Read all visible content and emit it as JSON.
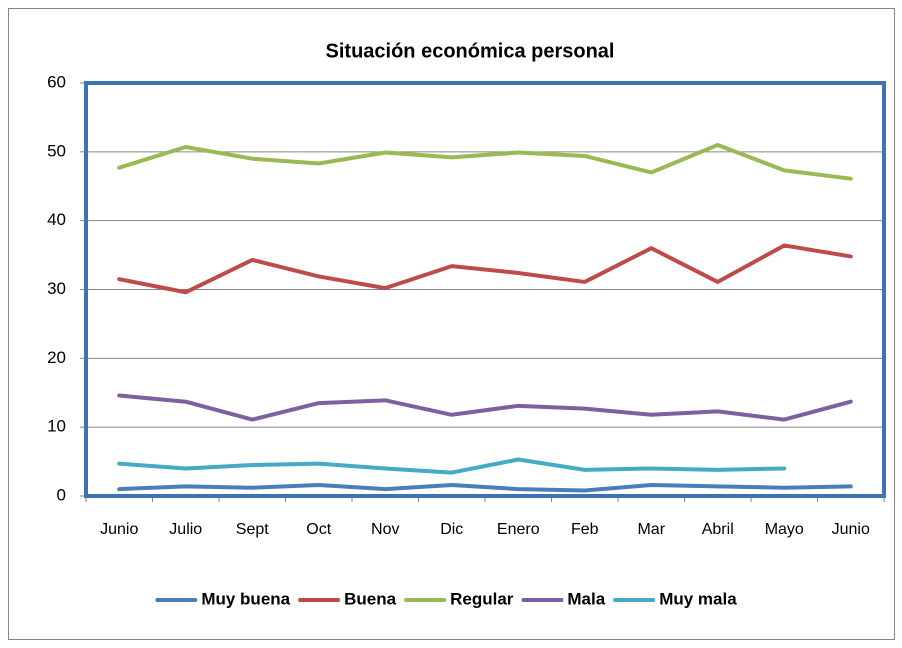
{
  "chart_data": {
    "type": "line",
    "title": "Situación económica personal",
    "categories": [
      "Junio",
      "Julio",
      "Sept",
      "Oct",
      "Nov",
      "Dic",
      "Enero",
      "Feb",
      "Mar",
      "Abril",
      "Mayo",
      "Junio"
    ],
    "series": [
      {
        "name": "Muy buena",
        "color": "#4a7ebb",
        "values": [
          1.0,
          1.4,
          1.2,
          1.6,
          1.0,
          1.6,
          1.0,
          0.8,
          1.6,
          1.4,
          1.2,
          1.4
        ]
      },
      {
        "name": "Buena",
        "color": "#be4b48",
        "values": [
          31.5,
          29.6,
          34.3,
          31.9,
          30.2,
          33.4,
          32.4,
          31.1,
          36.0,
          31.1,
          36.4,
          34.8
        ]
      },
      {
        "name": "Regular",
        "color": "#98b954",
        "values": [
          47.7,
          50.7,
          49.0,
          48.3,
          49.9,
          49.2,
          49.9,
          49.4,
          47.0,
          51.0,
          47.3,
          46.1
        ]
      },
      {
        "name": "Mala",
        "color": "#7d60a0",
        "values": [
          14.6,
          13.7,
          11.1,
          13.5,
          13.9,
          11.8,
          13.1,
          12.7,
          11.8,
          12.3,
          11.1,
          13.7
        ]
      },
      {
        "name": "Muy mala",
        "color": "#46aac5",
        "values": [
          4.7,
          4.0,
          4.5,
          4.7,
          4.0,
          3.4,
          5.3,
          3.8,
          4.0,
          3.8,
          4.0,
          null
        ]
      }
    ],
    "ylim": [
      0,
      60
    ],
    "yticks": [
      0,
      10,
      20,
      30,
      40,
      50,
      60
    ],
    "grid": true,
    "legend": "bottom"
  }
}
